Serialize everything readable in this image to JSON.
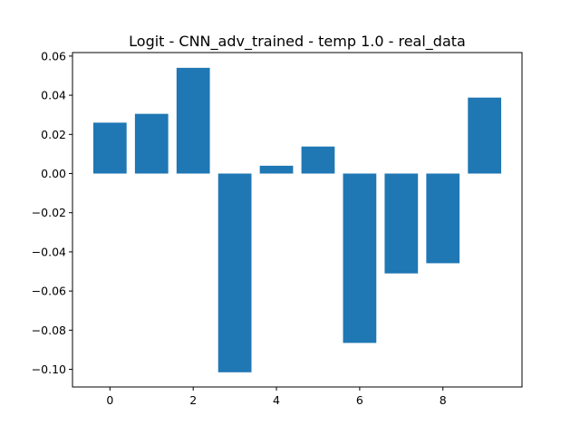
{
  "chart_data": {
    "type": "bar",
    "title": "Logit - CNN_adv_trained - temp 1.0 - real_data",
    "xlabel": "",
    "ylabel": "",
    "categories": [
      0,
      1,
      2,
      3,
      4,
      5,
      6,
      7,
      8,
      9
    ],
    "values": [
      0.026,
      0.0305,
      0.054,
      -0.1015,
      0.004,
      0.0138,
      -0.0865,
      -0.051,
      -0.0458,
      0.0388
    ],
    "xlim": [
      -0.9,
      9.9
    ],
    "ylim": [
      -0.109,
      0.0618
    ],
    "xticks": [
      0,
      2,
      4,
      6,
      8
    ],
    "xtick_labels": [
      "0",
      "2",
      "4",
      "6",
      "8"
    ],
    "yticks": [
      -0.1,
      -0.08,
      -0.06,
      -0.04,
      -0.02,
      0.0,
      0.02,
      0.04,
      0.06
    ],
    "ytick_labels": [
      "−0.10",
      "−0.08",
      "−0.06",
      "−0.04",
      "−0.02",
      "0.00",
      "0.02",
      "0.04",
      "0.06"
    ],
    "bar_color": "#1f77b4",
    "grid": false,
    "legend": "none"
  }
}
